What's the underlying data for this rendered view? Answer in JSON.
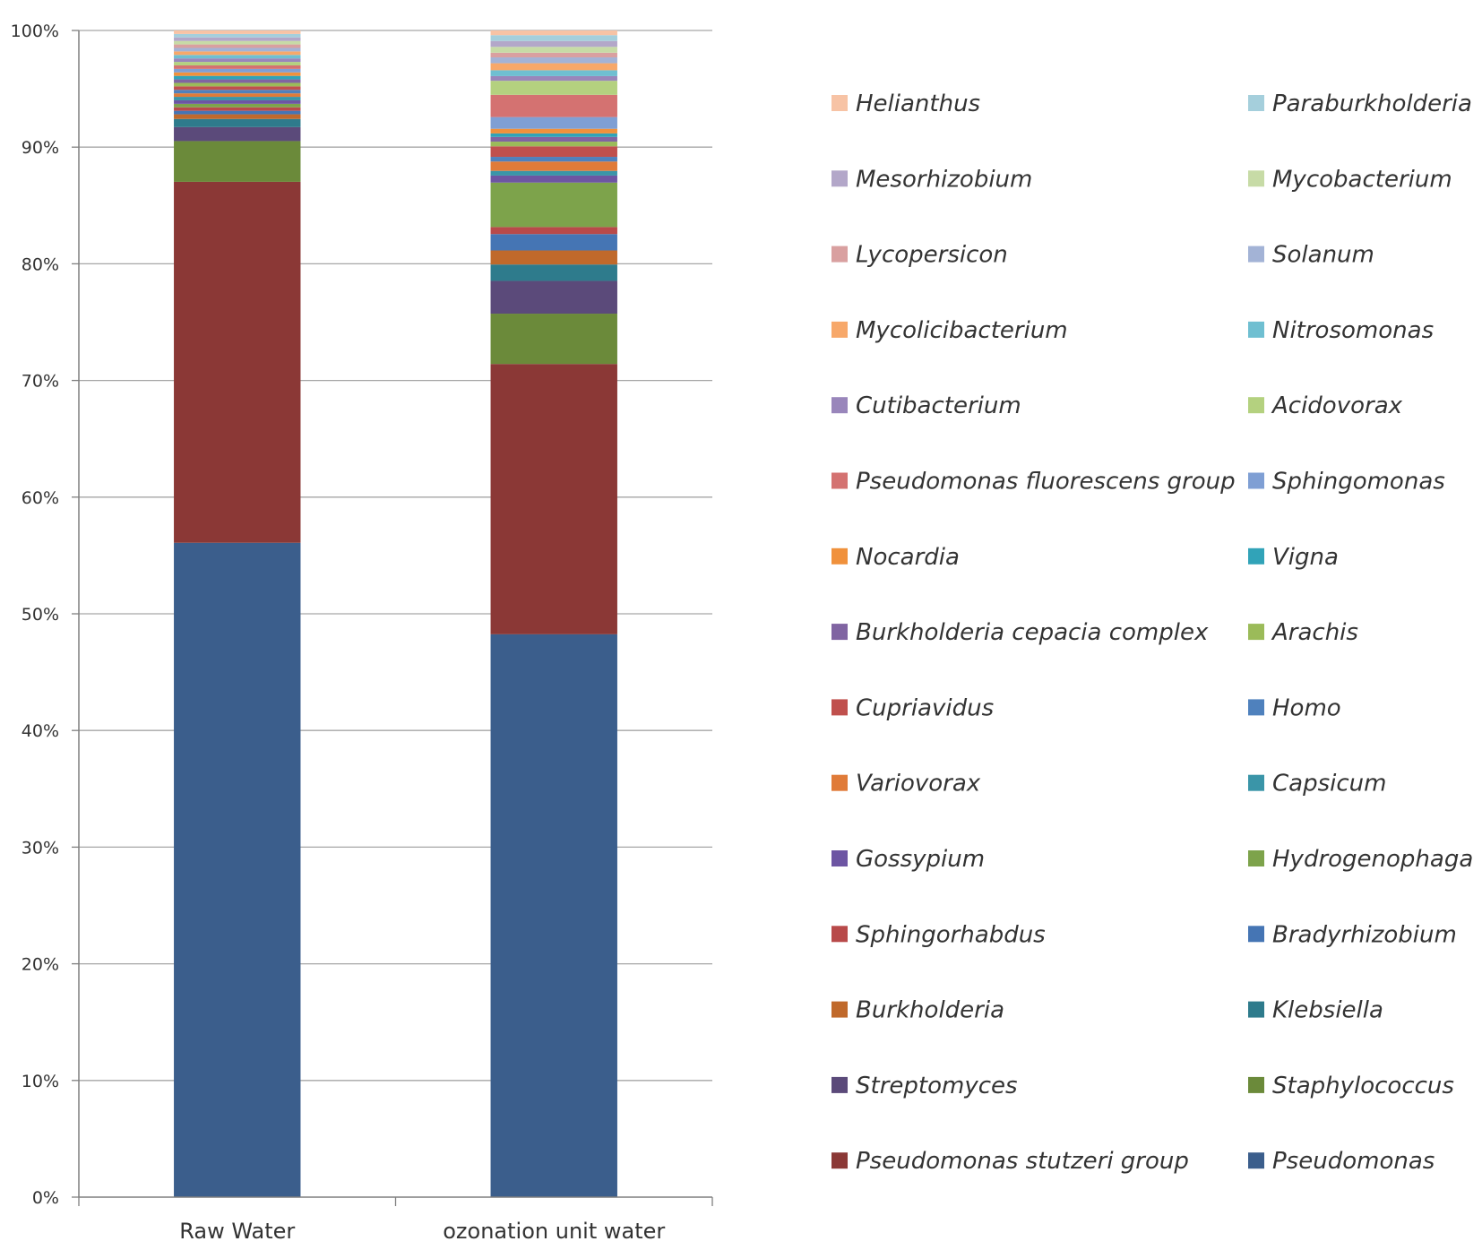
{
  "chart_data": {
    "type": "bar",
    "stacked": "percent",
    "title": "",
    "xlabel": "",
    "ylabel": "",
    "ylim": [
      0,
      100
    ],
    "yticks": [
      "0%",
      "10%",
      "20%",
      "30%",
      "40%",
      "50%",
      "60%",
      "70%",
      "80%",
      "90%",
      "100%"
    ],
    "grid": true,
    "legend_position": "right",
    "categories": [
      "Raw Water",
      "ozonation unit water"
    ],
    "series": [
      {
        "name": "Pseudomonas",
        "color": "#3b5e8c",
        "values": [
          56.2,
          48.1
        ]
      },
      {
        "name": "Pseudomonas stutzeri group",
        "color": "#8b3836",
        "values": [
          31.0,
          23.1
        ]
      },
      {
        "name": "Staphylococcus",
        "color": "#6b8a3a",
        "values": [
          3.5,
          4.3
        ]
      },
      {
        "name": "Streptomyces",
        "color": "#5b4a7a",
        "values": [
          1.2,
          2.8
        ]
      },
      {
        "name": "Klebsiella",
        "color": "#2e7b8c",
        "values": [
          0.7,
          1.4
        ]
      },
      {
        "name": "Burkholderia",
        "color": "#c0692b",
        "values": [
          0.4,
          1.2
        ]
      },
      {
        "name": "Bradyrhizobium",
        "color": "#4575b4",
        "values": [
          0.3,
          1.4
        ]
      },
      {
        "name": "Sphingorhabdus",
        "color": "#b84a4a",
        "values": [
          0.3,
          0.6
        ]
      },
      {
        "name": "Hydrogenophaga",
        "color": "#7da34b",
        "values": [
          0.3,
          3.8
        ]
      },
      {
        "name": "Gossypium",
        "color": "#6d55a3",
        "values": [
          0.3,
          0.6
        ]
      },
      {
        "name": "Capsicum",
        "color": "#3a95a8",
        "values": [
          0.3,
          0.4
        ]
      },
      {
        "name": "Variovorax",
        "color": "#e07b39",
        "values": [
          0.3,
          0.8
        ]
      },
      {
        "name": "Homo",
        "color": "#4f81bd",
        "values": [
          0.3,
          0.4
        ]
      },
      {
        "name": "Cupriavidus",
        "color": "#c0504d",
        "values": [
          0.3,
          0.9
        ]
      },
      {
        "name": "Arachis",
        "color": "#9bbb59",
        "values": [
          0.3,
          0.4
        ]
      },
      {
        "name": "Burkholderia cepacia complex",
        "color": "#8064a2",
        "values": [
          0.3,
          0.4
        ]
      },
      {
        "name": "Vigna",
        "color": "#31a3b8",
        "values": [
          0.3,
          0.3
        ]
      },
      {
        "name": "Nocardia",
        "color": "#f0913c",
        "values": [
          0.3,
          0.4
        ]
      },
      {
        "name": "Sphingomonas",
        "color": "#7f9fd4",
        "values": [
          0.3,
          1.0
        ]
      },
      {
        "name": "Pseudomonas fluorescens group",
        "color": "#d47271",
        "values": [
          0.3,
          1.9
        ]
      },
      {
        "name": "Acidovorax",
        "color": "#b4d17f",
        "values": [
          0.3,
          1.2
        ]
      },
      {
        "name": "Cutibacterium",
        "color": "#9986bb",
        "values": [
          0.3,
          0.4
        ]
      },
      {
        "name": "Nitrosomonas",
        "color": "#6fbfd1",
        "values": [
          0.3,
          0.5
        ]
      },
      {
        "name": "Mycolicibacterium",
        "color": "#f7a86a",
        "values": [
          0.3,
          0.6
        ]
      },
      {
        "name": "Solanum",
        "color": "#a3b3d6",
        "values": [
          0.3,
          0.5
        ]
      },
      {
        "name": "Lycopersicon",
        "color": "#d9a0a0",
        "values": [
          0.3,
          0.4
        ]
      },
      {
        "name": "Mycobacterium",
        "color": "#c7dba6",
        "values": [
          0.3,
          0.5
        ]
      },
      {
        "name": "Mesorhizobium",
        "color": "#b3a7c9",
        "values": [
          0.3,
          0.5
        ]
      },
      {
        "name": "Paraburkholderia",
        "color": "#a5cfdc",
        "values": [
          0.3,
          0.5
        ]
      },
      {
        "name": "Helianthus",
        "color": "#f7c3a5",
        "values": [
          0.3,
          0.4
        ]
      }
    ],
    "legend_columns": [
      [
        "Helianthus",
        "Mesorhizobium",
        "Lycopersicon",
        "Mycolicibacterium",
        "Cutibacterium",
        "Pseudomonas fluorescens group",
        "Nocardia",
        "Burkholderia cepacia complex",
        "Cupriavidus",
        "Variovorax",
        "Gossypium",
        "Sphingorhabdus",
        "Burkholderia",
        "Streptomyces",
        "Pseudomonas stutzeri group"
      ],
      [
        "Paraburkholderia",
        "Mycobacterium",
        "Solanum",
        "Nitrosomonas",
        "Acidovorax",
        "Sphingomonas",
        "Vigna",
        "Arachis",
        "Homo",
        "Capsicum",
        "Hydrogenophaga",
        "Bradyrhizobium",
        "Klebsiella",
        "Staphylococcus",
        "Pseudomonas"
      ]
    ]
  }
}
